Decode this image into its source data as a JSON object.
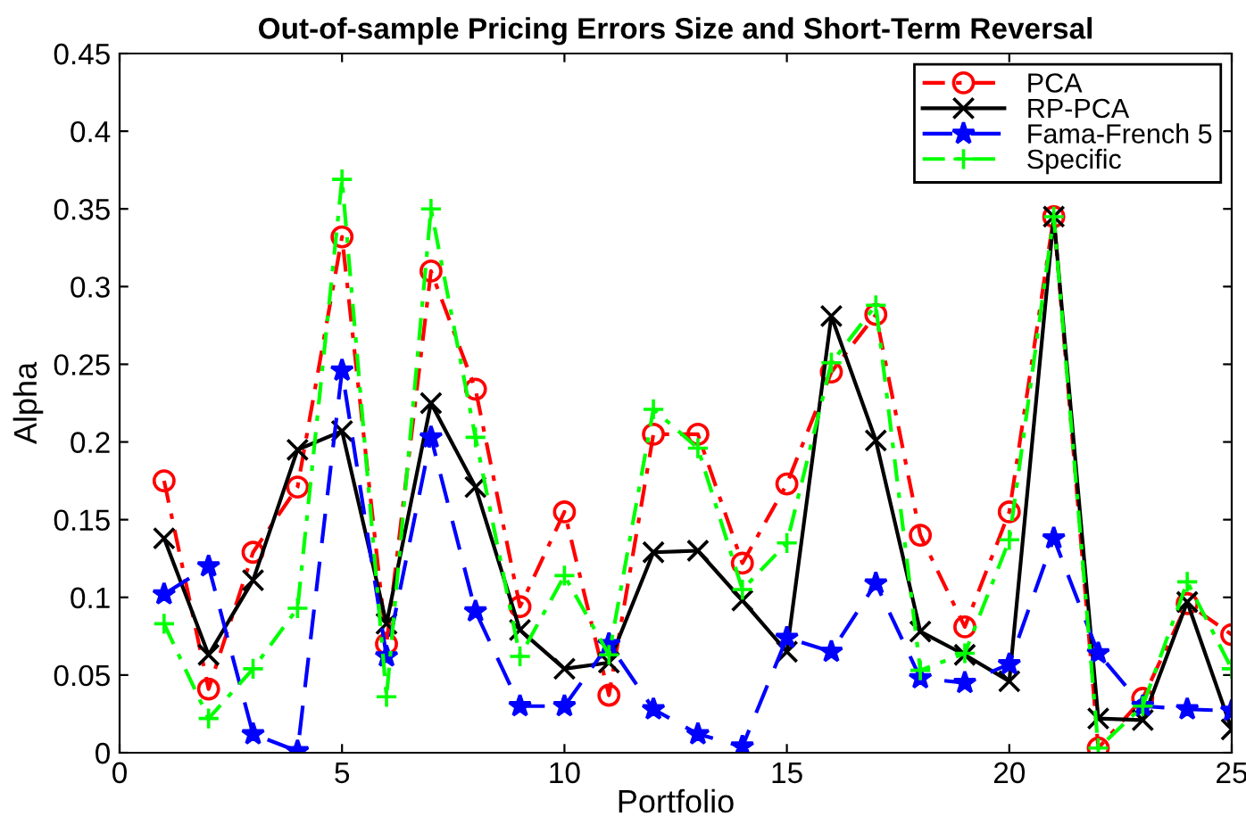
{
  "chart_data": {
    "type": "line",
    "title": "Out-of-sample Pricing Errors Size and Short-Term Reversal",
    "xlabel": "Portfolio",
    "ylabel": "Alpha",
    "x": [
      1,
      2,
      3,
      4,
      5,
      6,
      7,
      8,
      9,
      10,
      11,
      12,
      13,
      14,
      15,
      16,
      17,
      18,
      19,
      20,
      21,
      22,
      23,
      24,
      25
    ],
    "series": [
      {
        "name": "PCA",
        "color": "#ff0000",
        "marker": "circle",
        "line_style": "dashdot",
        "values": [
          0.175,
          0.041,
          0.129,
          0.171,
          0.332,
          0.07,
          0.31,
          0.234,
          0.094,
          0.155,
          0.037,
          0.205,
          0.205,
          0.122,
          0.173,
          0.245,
          0.282,
          0.14,
          0.081,
          0.155,
          0.345,
          0.003,
          0.035,
          0.096,
          0.076
        ]
      },
      {
        "name": "RP-PCA",
        "color": "#000000",
        "marker": "cross",
        "line_style": "solid",
        "values": [
          0.138,
          0.063,
          0.111,
          0.195,
          0.207,
          0.083,
          0.225,
          0.171,
          0.079,
          0.054,
          0.058,
          0.129,
          0.13,
          0.098,
          0.065,
          0.281,
          0.201,
          0.078,
          0.063,
          0.046,
          0.345,
          0.022,
          0.021,
          0.097,
          0.015
        ]
      },
      {
        "name": "Fama-French 5",
        "color": "#0000ff",
        "marker": "star",
        "line_style": "dashed",
        "values": [
          0.102,
          0.12,
          0.012,
          0.001,
          0.246,
          0.062,
          0.203,
          0.091,
          0.03,
          0.03,
          0.07,
          0.028,
          0.012,
          0.004,
          0.074,
          0.065,
          0.109,
          0.048,
          0.045,
          0.057,
          0.138,
          0.064,
          0.03,
          0.028,
          0.027
        ]
      },
      {
        "name": "Specific",
        "color": "#00ff00",
        "marker": "plus",
        "line_style": "dashdot",
        "values": [
          0.083,
          0.022,
          0.054,
          0.093,
          0.369,
          0.036,
          0.35,
          0.203,
          0.062,
          0.114,
          0.063,
          0.221,
          0.196,
          0.105,
          0.135,
          0.251,
          0.288,
          0.053,
          0.064,
          0.137,
          0.345,
          0.003,
          0.03,
          0.11,
          0.054
        ]
      }
    ],
    "xlim": [
      0,
      25
    ],
    "xticks": [
      0,
      5,
      10,
      15,
      20,
      25
    ],
    "ylim": [
      0,
      0.45
    ],
    "yticks": [
      0,
      0.05,
      0.1,
      0.15,
      0.2,
      0.25,
      0.3,
      0.35,
      0.4,
      0.45
    ],
    "grid": false,
    "legend": "top right"
  }
}
